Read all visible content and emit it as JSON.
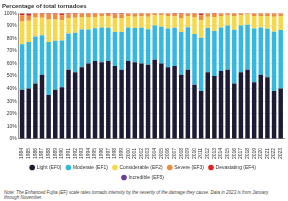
{
  "chart_data": {
    "type": "bar",
    "stacked": true,
    "grid": true,
    "legend": "bottom",
    "ylabel": "Percentage of total tornadoes",
    "note": "Note: The Enhanced Fujita (EF) scale rates tornado intensity by the severity of the damage they cause. Data in 2023 is from January through November.",
    "categories": [
      "1984",
      "1985",
      "1986",
      "1987",
      "1988",
      "1989",
      "1990",
      "1991",
      "1992",
      "1993",
      "1994",
      "1995",
      "1996",
      "1997",
      "1998",
      "1999",
      "2000",
      "2001",
      "2002",
      "2003",
      "2004",
      "2005",
      "2006",
      "2007",
      "2008",
      "2009",
      "2010",
      "2011",
      "2012",
      "2013",
      "2014",
      "2015",
      "2016",
      "2017",
      "2018",
      "2019",
      "2020",
      "2021",
      "2022",
      "2023"
    ],
    "ylim": [
      0,
      100
    ],
    "yticks": [
      {
        "value": 0,
        "label": "0%"
      },
      {
        "value": 10,
        "label": "10%"
      },
      {
        "value": 20,
        "label": "20%"
      },
      {
        "value": 30,
        "label": "30%"
      },
      {
        "value": 40,
        "label": "40%"
      },
      {
        "value": 50,
        "label": "50%"
      },
      {
        "value": 60,
        "label": "60%"
      },
      {
        "value": 70,
        "label": "70%"
      },
      {
        "value": 80,
        "label": "80%"
      },
      {
        "value": 90,
        "label": "90%"
      },
      {
        "value": 100,
        "label": "100%"
      }
    ],
    "series": [
      {
        "name": "Light (EF0)",
        "color": "#1c1b33",
        "values": [
          39,
          40,
          44,
          51,
          35,
          39,
          41,
          55,
          53,
          57,
          60,
          62,
          61,
          62,
          58,
          55,
          62,
          61,
          60,
          59,
          63,
          60,
          57,
          58,
          51,
          55,
          43,
          38,
          53,
          50,
          54,
          55,
          44,
          53,
          55,
          45,
          51,
          49,
          38,
          40
        ]
      },
      {
        "name": "Moderate (EF1)",
        "color": "#35b8e0",
        "values": [
          36.3,
          37,
          37.5,
          31.4,
          42,
          39,
          37.3,
          28.9,
          31.4,
          30,
          27,
          26,
          27.7,
          26.4,
          27.1,
          30.1,
          26.7,
          27.2,
          28.5,
          28.2,
          27.3,
          29.3,
          30.8,
          30.4,
          34.1,
          33.8,
          40.5,
          42.4,
          35.2,
          35.9,
          34.7,
          35.2,
          42.8,
          37.3,
          35.9,
          42.8,
          37.7,
          38.7,
          47.2,
          46.7
        ]
      },
      {
        "name": "Considerable (EF2)",
        "color": "#f6d848",
        "values": [
          18,
          17,
          15,
          14,
          18,
          17,
          16,
          12,
          12,
          10,
          10,
          9,
          9,
          9,
          11,
          11,
          9,
          9,
          9,
          10,
          8,
          9,
          10,
          9,
          11,
          9,
          13,
          14,
          9,
          11,
          9,
          8,
          11,
          8,
          8,
          10,
          9,
          10,
          12,
          11
        ]
      },
      {
        "name": "Severe (EF3)",
        "color": "#f08c3a",
        "values": [
          5,
          4,
          3,
          3,
          4,
          4,
          4,
          3,
          3,
          2.5,
          2.5,
          2.5,
          2,
          2,
          3,
          3,
          2,
          2.5,
          2,
          2.5,
          1.5,
          1.5,
          2,
          2,
          3,
          2,
          3,
          4,
          2.5,
          2.5,
          2,
          1.5,
          2,
          1.5,
          1,
          2,
          2,
          2,
          2.5,
          2
        ]
      },
      {
        "name": "Devastating (EF4)",
        "color": "#e0221c",
        "values": [
          1.5,
          1.5,
          0.5,
          0.5,
          1,
          1,
          1.5,
          1,
          0.5,
          0.5,
          0.5,
          0.5,
          0.3,
          0.5,
          0.8,
          0.8,
          0.3,
          0.3,
          0.5,
          0.3,
          0.2,
          0.2,
          0.2,
          0.5,
          0.8,
          0.2,
          0.5,
          1.2,
          0.3,
          0.5,
          0.3,
          0.3,
          0.2,
          0.2,
          0.1,
          0.2,
          0.3,
          0.3,
          0.3,
          0.3
        ]
      },
      {
        "name": "Incredible (EF5)",
        "color": "#6a3d9e",
        "values": [
          0.2,
          0.5,
          0,
          0.1,
          0,
          0,
          0.2,
          0.1,
          0.1,
          0,
          0,
          0,
          0,
          0.1,
          0.1,
          0.1,
          0,
          0,
          0,
          0,
          0,
          0,
          0,
          0.1,
          0.1,
          0,
          0,
          0.4,
          0,
          0.1,
          0,
          0,
          0,
          0,
          0,
          0,
          0,
          0,
          0,
          0
        ]
      }
    ]
  }
}
